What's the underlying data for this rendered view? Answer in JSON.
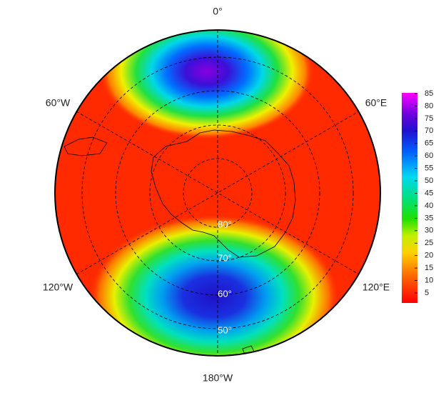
{
  "map": {
    "longitude_labels": [
      "0°",
      "60°E",
      "120°E",
      "180°W",
      "120°W",
      "60°W"
    ],
    "latitude_labels": [
      "80°",
      "70°",
      "60°",
      "50°"
    ],
    "colorbar": {
      "ticks": [
        5,
        10,
        15,
        20,
        25,
        30,
        35,
        40,
        45,
        50,
        55,
        60,
        65,
        70,
        75,
        80,
        85
      ]
    }
  }
}
